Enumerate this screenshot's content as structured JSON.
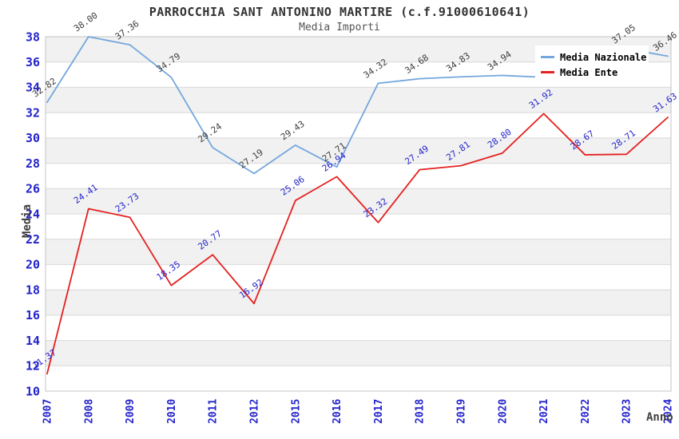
{
  "chart_data": {
    "type": "line",
    "title": "PARROCCHIA SANT ANTONINO MARTIRE (c.f.91000610641)",
    "subtitle": "Media Importi",
    "xlabel": "Anno",
    "ylabel": "Media",
    "ylim": [
      10,
      38
    ],
    "ytick_step": 2,
    "grid": "horizontal",
    "legend_position": "top-right",
    "band_colors": [
      "#f1f1f1",
      "#ffffff"
    ],
    "axis_tick_color": "#2424cc",
    "categories": [
      "2007",
      "2008",
      "2009",
      "2010",
      "2011",
      "2012",
      "2015",
      "2016",
      "2017",
      "2018",
      "2019",
      "2020",
      "2021",
      "2022",
      "2023",
      "2024"
    ],
    "series": [
      {
        "name": "Media Nazionale",
        "color": "#74a7dd",
        "label_color": "#3d3d3d",
        "values": [
          32.82,
          38.0,
          37.36,
          34.79,
          29.24,
          27.19,
          29.43,
          27.71,
          34.32,
          34.68,
          34.83,
          34.94,
          34.8,
          35.9,
          37.05,
          36.46
        ],
        "labels": [
          "32.82",
          "38.00",
          "37.36",
          "34.79",
          "29.24",
          "27.19",
          "29.43",
          "27.71",
          "34.32",
          "34.68",
          "34.83",
          "34.94",
          "",
          "",
          "37.05",
          "36.46"
        ]
      },
      {
        "name": "Media Ente",
        "color": "#e52020",
        "label_color": "#2424cc",
        "values": [
          11.37,
          24.41,
          23.73,
          18.35,
          20.77,
          16.92,
          25.06,
          26.94,
          23.32,
          27.49,
          27.81,
          28.8,
          31.92,
          28.67,
          28.71,
          31.63
        ],
        "labels": [
          "11.37",
          "24.41",
          "23.73",
          "18.35",
          "20.77",
          "16.92",
          "25.06",
          "26.94",
          "23.32",
          "27.49",
          "27.81",
          "28.80",
          "31.92",
          "28.67",
          "28.71",
          "31.63"
        ]
      }
    ]
  }
}
